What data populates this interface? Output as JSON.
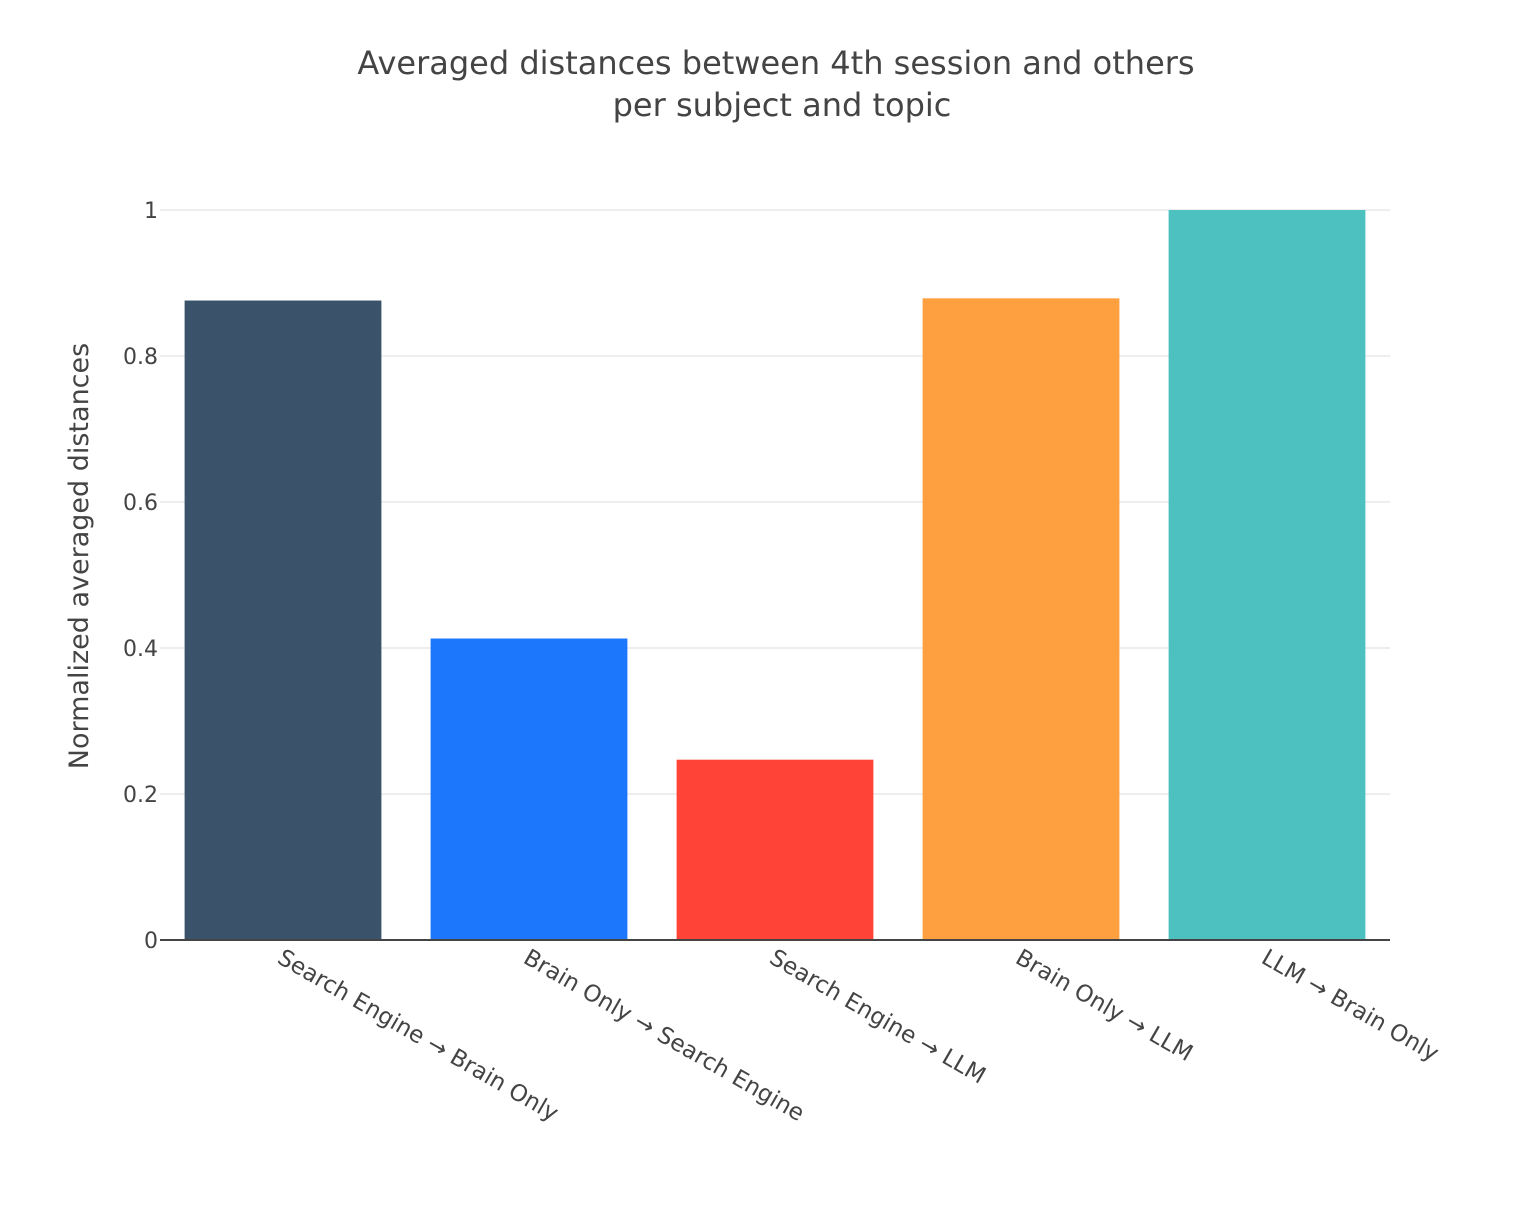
{
  "chart_data": {
    "type": "bar",
    "title": "Averaged distances between 4th session and others",
    "subtitle": "per subject and topic",
    "xlabel": "",
    "ylabel": "Normalized averaged distances",
    "categories": [
      "Search Engine → Brain Only",
      "Brain Only → Search Engine",
      "Search Engine → LLM",
      "Brain Only → LLM",
      "LLM → Brain Only"
    ],
    "values": [
      0.876,
      0.413,
      0.247,
      0.879,
      1.0
    ],
    "colors": [
      "#3a536b",
      "#1c77fd",
      "#ff4437",
      "#ffa040",
      "#4dc0c0"
    ],
    "ylim": [
      0,
      1
    ],
    "yticks": [
      0,
      0.2,
      0.4,
      0.6,
      0.8,
      1
    ],
    "ytick_labels": [
      "0",
      "0.2",
      "0.4",
      "0.6",
      "0.8",
      "1"
    ],
    "grid": true,
    "legend": "none"
  }
}
